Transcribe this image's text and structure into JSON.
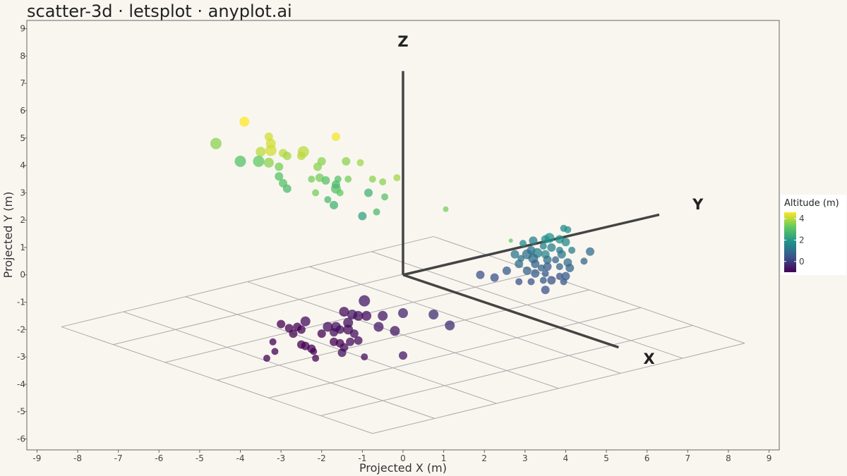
{
  "chart_data": {
    "type": "scatter",
    "title": "scatter-3d · letsplot · anyplot.ai",
    "xlabel": "Projected X (m)",
    "ylabel": "Projected Y (m)",
    "xlim": [
      -9.25,
      9.25
    ],
    "ylim": [
      -6.4,
      9.3
    ],
    "xticks": [
      -9,
      -8,
      -7,
      -6,
      -5,
      -4,
      -3,
      -2,
      -1,
      0,
      1,
      2,
      3,
      4,
      5,
      6,
      7,
      8,
      9
    ],
    "yticks": [
      -6,
      -5,
      -4,
      -3,
      -2,
      -1,
      0,
      1,
      2,
      3,
      4,
      5,
      6,
      7,
      8,
      9
    ],
    "grid": false,
    "axes3d": {
      "origin": [
        0,
        0
      ],
      "x_end": [
        5.3,
        -2.65
      ],
      "y_end": [
        6.3,
        2.2
      ],
      "z_end": [
        0,
        7.45
      ],
      "x_label": "X",
      "y_label": "Y",
      "z_label": "Z",
      "x_label_pos": [
        6.05,
        -3.05
      ],
      "y_label_pos": [
        7.25,
        2.6
      ],
      "z_label_pos": [
        0,
        8.55
      ]
    },
    "floor_grid": {
      "corners": [
        [
          -8.4,
          -1.9
        ],
        [
          0.75,
          1.4
        ],
        [
          8.4,
          -2.5
        ],
        [
          -0.75,
          -5.8
        ]
      ],
      "divisions": 6
    },
    "legend": {
      "title": "Altitude (m)",
      "position": "right",
      "ticks": [
        4,
        2,
        0
      ],
      "range": [
        -1,
        4.6
      ],
      "colors": [
        "#440154",
        "#3b528b",
        "#21918c",
        "#5ec962",
        "#fde725"
      ]
    },
    "points": [
      [
        -3.9,
        5.6,
        4.6,
        7
      ],
      [
        -1.65,
        5.05,
        4.5,
        6
      ],
      [
        -3.3,
        5.05,
        4.2,
        6
      ],
      [
        -4.6,
        4.8,
        3.6,
        8
      ],
      [
        -3.25,
        4.8,
        4.2,
        7
      ],
      [
        -3.25,
        4.55,
        4.2,
        8
      ],
      [
        -3.5,
        4.5,
        4.0,
        7
      ],
      [
        -2.95,
        4.45,
        4.0,
        6
      ],
      [
        -2.45,
        4.5,
        4.0,
        8
      ],
      [
        -2.5,
        4.35,
        4.0,
        6
      ],
      [
        -2.85,
        4.35,
        3.8,
        6
      ],
      [
        -4.0,
        4.15,
        3.0,
        8
      ],
      [
        -3.55,
        4.15,
        3.2,
        8
      ],
      [
        -3.3,
        4.1,
        3.6,
        7
      ],
      [
        -1.4,
        4.15,
        3.6,
        6
      ],
      [
        -2.0,
        4.15,
        3.6,
        6
      ],
      [
        -1.05,
        4.1,
        3.8,
        5
      ],
      [
        -3.05,
        3.95,
        3.4,
        6
      ],
      [
        -2.1,
        3.95,
        3.6,
        6
      ],
      [
        -3.05,
        3.6,
        3.0,
        6
      ],
      [
        -2.05,
        3.55,
        3.4,
        6
      ],
      [
        -2.25,
        3.5,
        3.4,
        5
      ],
      [
        -1.9,
        3.45,
        3.0,
        6
      ],
      [
        -1.6,
        3.5,
        3.0,
        5
      ],
      [
        -1.35,
        3.5,
        3.4,
        5
      ],
      [
        -0.75,
        3.5,
        3.6,
        5
      ],
      [
        -0.5,
        3.4,
        3.6,
        5
      ],
      [
        -0.15,
        3.55,
        3.8,
        5
      ],
      [
        -2.95,
        3.35,
        3.0,
        6
      ],
      [
        -2.85,
        3.15,
        2.8,
        6
      ],
      [
        -1.65,
        3.15,
        3.0,
        7
      ],
      [
        -1.65,
        3.3,
        2.8,
        6
      ],
      [
        -1.55,
        3.0,
        3.2,
        5
      ],
      [
        -2.15,
        3.0,
        3.4,
        5
      ],
      [
        -0.85,
        3.0,
        2.6,
        6
      ],
      [
        -0.45,
        2.85,
        3.0,
        5
      ],
      [
        -1.85,
        2.75,
        2.8,
        5
      ],
      [
        -1.7,
        2.55,
        2.6,
        6
      ],
      [
        -0.65,
        2.3,
        2.8,
        5
      ],
      [
        -1.0,
        2.15,
        2.2,
        6
      ],
      [
        1.05,
        2.4,
        3.4,
        4
      ],
      [
        2.65,
        1.25,
        3.2,
        3
      ],
      [
        3.95,
        1.7,
        1.6,
        5
      ],
      [
        4.05,
        1.65,
        1.8,
        5
      ],
      [
        3.85,
        1.3,
        1.8,
        6
      ],
      [
        4.0,
        1.2,
        1.6,
        6
      ],
      [
        3.5,
        1.3,
        1.8,
        6
      ],
      [
        3.6,
        1.35,
        1.8,
        7
      ],
      [
        3.2,
        1.25,
        1.4,
        6
      ],
      [
        2.95,
        1.15,
        1.6,
        5
      ],
      [
        3.45,
        1.05,
        1.4,
        5
      ],
      [
        3.65,
        1.0,
        1.4,
        6
      ],
      [
        3.85,
        0.9,
        1.4,
        5
      ],
      [
        3.15,
        0.9,
        1.2,
        6
      ],
      [
        3.3,
        0.8,
        1.4,
        7
      ],
      [
        3.5,
        0.75,
        1.6,
        6
      ],
      [
        3.9,
        0.75,
        1.2,
        6
      ],
      [
        4.15,
        0.9,
        1.4,
        5
      ],
      [
        4.6,
        0.85,
        1.0,
        6
      ],
      [
        2.75,
        0.75,
        1.2,
        6
      ],
      [
        3.05,
        0.75,
        1.0,
        7
      ],
      [
        2.9,
        0.6,
        1.2,
        5
      ],
      [
        3.2,
        0.6,
        1.0,
        7
      ],
      [
        3.55,
        0.55,
        1.0,
        6
      ],
      [
        3.75,
        0.55,
        0.8,
        5
      ],
      [
        4.05,
        0.45,
        1.0,
        6
      ],
      [
        4.45,
        0.5,
        0.8,
        5
      ],
      [
        2.85,
        0.4,
        1.0,
        6
      ],
      [
        3.25,
        0.4,
        0.8,
        6
      ],
      [
        3.4,
        0.25,
        0.8,
        5
      ],
      [
        3.55,
        0.3,
        0.6,
        6
      ],
      [
        3.85,
        0.3,
        0.8,
        5
      ],
      [
        4.1,
        0.25,
        0.8,
        6
      ],
      [
        2.55,
        0.15,
        0.6,
        6
      ],
      [
        3.05,
        0.15,
        0.8,
        6
      ],
      [
        3.25,
        0.05,
        0.6,
        6
      ],
      [
        3.5,
        0.05,
        0.6,
        5
      ],
      [
        3.85,
        -0.05,
        0.4,
        5
      ],
      [
        4.0,
        -0.05,
        0.6,
        6
      ],
      [
        1.9,
        0.0,
        0.4,
        6
      ],
      [
        2.25,
        -0.1,
        0.4,
        6
      ],
      [
        2.85,
        -0.25,
        0.4,
        5
      ],
      [
        3.15,
        -0.25,
        0.4,
        5
      ],
      [
        3.45,
        -0.2,
        0.6,
        5
      ],
      [
        3.65,
        -0.2,
        0.4,
        6
      ],
      [
        3.95,
        -0.25,
        0.6,
        5
      ],
      [
        3.5,
        -0.55,
        0.4,
        6
      ],
      [
        -0.95,
        -0.95,
        -0.6,
        8
      ],
      [
        -1.45,
        -1.35,
        -0.8,
        7
      ],
      [
        -1.25,
        -1.45,
        -0.6,
        7
      ],
      [
        -1.1,
        -1.5,
        -0.8,
        7
      ],
      [
        -0.9,
        -1.5,
        -0.8,
        7
      ],
      [
        -0.5,
        -1.5,
        -0.6,
        7
      ],
      [
        0.0,
        -1.4,
        -0.4,
        7
      ],
      [
        0.75,
        -1.45,
        -0.2,
        7
      ],
      [
        -1.35,
        -1.75,
        -0.8,
        7
      ],
      [
        -2.4,
        -1.7,
        -0.8,
        7
      ],
      [
        -3.0,
        -1.8,
        -1.0,
        6
      ],
      [
        -2.6,
        -1.9,
        -1.0,
        6
      ],
      [
        -1.85,
        -1.9,
        -0.8,
        7
      ],
      [
        -1.65,
        -1.9,
        -0.8,
        7
      ],
      [
        -1.55,
        -2.0,
        -0.8,
        6
      ],
      [
        -1.35,
        -2.0,
        -0.8,
        7
      ],
      [
        -2.8,
        -1.95,
        -1.0,
        6
      ],
      [
        -2.5,
        -2.0,
        -1.0,
        6
      ],
      [
        -0.6,
        -1.9,
        -0.6,
        7
      ],
      [
        -0.2,
        -2.05,
        -0.6,
        7
      ],
      [
        1.15,
        -1.85,
        -0.2,
        7
      ],
      [
        -2.7,
        -2.15,
        -1.0,
        6
      ],
      [
        -2.0,
        -2.15,
        -1.0,
        6
      ],
      [
        -1.7,
        -2.1,
        -0.8,
        6
      ],
      [
        -1.2,
        -2.15,
        -0.8,
        6
      ],
      [
        -3.2,
        -2.45,
        -1.0,
        5
      ],
      [
        -2.5,
        -2.55,
        -1.0,
        6
      ],
      [
        -2.4,
        -2.6,
        -1.0,
        6
      ],
      [
        -1.7,
        -2.45,
        -1.0,
        6
      ],
      [
        -1.55,
        -2.5,
        -1.0,
        6
      ],
      [
        -1.3,
        -2.45,
        -0.8,
        6
      ],
      [
        -1.1,
        -2.4,
        -0.8,
        6
      ],
      [
        -2.25,
        -2.7,
        -1.0,
        6
      ],
      [
        -1.45,
        -2.65,
        -0.8,
        6
      ],
      [
        -3.15,
        -2.8,
        -1.0,
        5
      ],
      [
        -2.2,
        -2.8,
        -1.0,
        5
      ],
      [
        -1.5,
        -2.85,
        -0.8,
        6
      ],
      [
        -3.35,
        -3.05,
        -1.0,
        5
      ],
      [
        -2.15,
        -3.05,
        -1.0,
        5
      ],
      [
        -0.95,
        -3.0,
        -0.8,
        5
      ],
      [
        0.0,
        -2.95,
        -0.6,
        6
      ]
    ]
  }
}
